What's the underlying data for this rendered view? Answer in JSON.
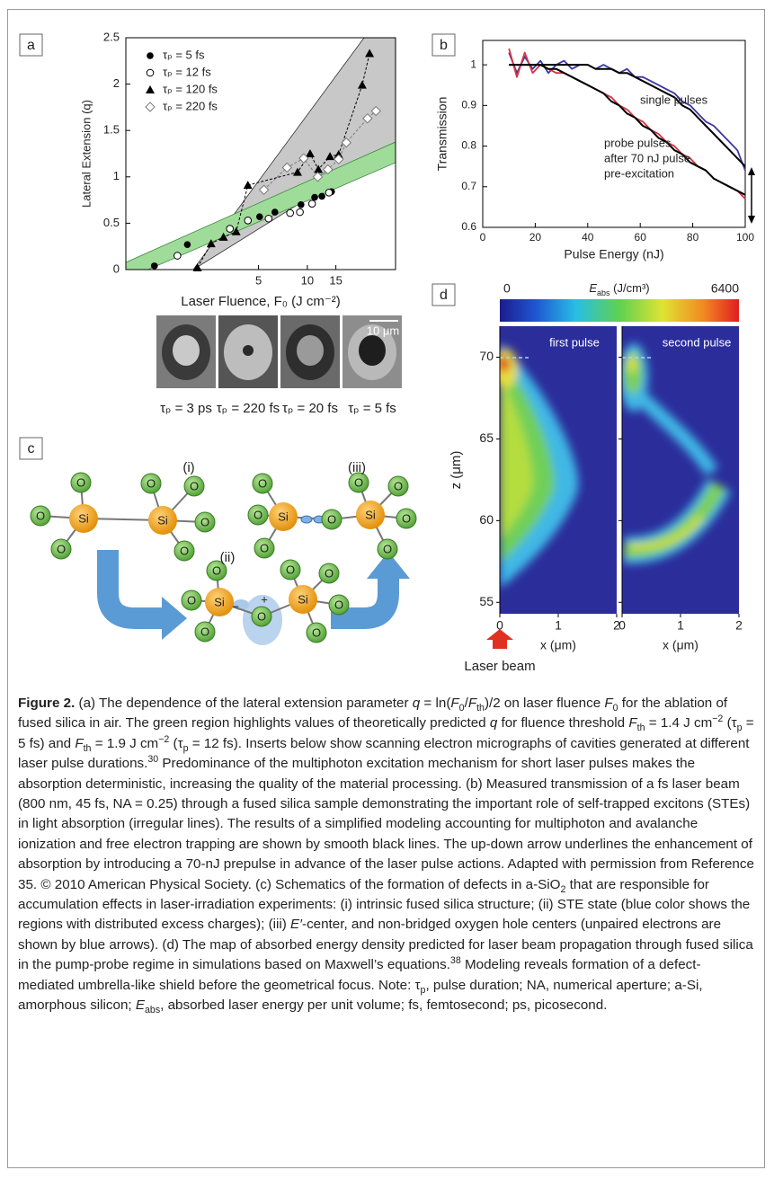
{
  "panel_labels": [
    "a",
    "b",
    "c",
    "d"
  ],
  "chart_data": [
    {
      "type": "scatter",
      "xlabel": "Laser Fluence, F₀ (J cm⁻²)",
      "ylabel": "Lateral Extension (q)",
      "xscale": "log",
      "xlim": [
        0.76,
        35
      ],
      "xticks": [
        5,
        10,
        15
      ],
      "ylim": [
        0,
        2.5
      ],
      "yticks": [
        0,
        0.5,
        1,
        1.5,
        2,
        2.5
      ],
      "legend": "upper left",
      "series": [
        {
          "name": "τₚ = 5 fs",
          "color": "#000000",
          "marker": "circle-filled",
          "x": [
            1.14,
            1.82,
            5.08,
            6.31,
            9.14,
            11.1,
            12.3,
            14.1
          ],
          "values": [
            0.04,
            0.27,
            0.57,
            0.62,
            0.7,
            0.78,
            0.79,
            0.84
          ]
        },
        {
          "name": "τₚ = 12 fs",
          "color": "#000000",
          "marker": "circle-open",
          "x": [
            1.58,
            3.33,
            4.3,
            5.77,
            7.83,
            9.0,
            10.7,
            13.6
          ],
          "values": [
            0.15,
            0.44,
            0.53,
            0.55,
            0.61,
            0.62,
            0.71,
            0.83
          ]
        },
        {
          "name": "τₚ = 120 fs",
          "color": "#000000",
          "marker": "triangle",
          "line": "dashed",
          "x": [
            2.1,
            2.55,
            3.04,
            3.64,
            4.3,
            8.7,
            10.4,
            11.7,
            13.8,
            15.6,
            21.8,
            24.2
          ],
          "values": [
            0.02,
            0.28,
            0.35,
            0.41,
            0.91,
            1.05,
            1.25,
            1.08,
            1.22,
            1.24,
            1.99,
            2.33
          ]
        },
        {
          "name": "τₚ = 220 fs",
          "color": "#7a7a7a",
          "marker": "diamond-open",
          "line": "dashed",
          "x": [
            5.4,
            7.5,
            9.5,
            11.6,
            13.4,
            15.6,
            17.4,
            23.5,
            26.5
          ],
          "values": [
            0.86,
            1.1,
            1.2,
            1.0,
            1.08,
            1.19,
            1.37,
            1.63,
            1.71
          ]
        }
      ]
    },
    {
      "type": "line",
      "xlabel": "Pulse Energy (nJ)",
      "ylabel": "Transmission",
      "xlim": [
        0,
        100
      ],
      "xticks": [
        0,
        20,
        40,
        60,
        80,
        100
      ],
      "ylim": [
        0.6,
        1.06
      ],
      "yticks": [
        0.6,
        0.7,
        0.8,
        0.9,
        1
      ],
      "x": [
        10,
        13,
        16,
        19,
        22,
        25,
        28,
        31,
        34,
        37,
        40,
        43,
        46,
        49,
        52,
        55,
        58,
        61,
        64,
        67,
        70,
        73,
        76,
        79,
        82,
        85,
        88,
        91,
        94,
        97,
        100
      ],
      "series": [
        {
          "color": "#3b36a6",
          "values": [
            1.03,
            0.98,
            1.02,
            0.99,
            1.01,
            0.98,
            1.0,
            1.01,
            0.99,
            1.0,
            1.0,
            0.99,
            1.0,
            0.99,
            0.98,
            0.99,
            0.97,
            0.97,
            0.96,
            0.95,
            0.94,
            0.93,
            0.91,
            0.9,
            0.88,
            0.86,
            0.85,
            0.83,
            0.81,
            0.79,
            0.74
          ]
        },
        {
          "color": "#d9323f",
          "values": [
            1.04,
            0.97,
            1.03,
            0.98,
            1.0,
            0.99,
            0.98,
            0.98,
            0.97,
            0.96,
            0.95,
            0.94,
            0.93,
            0.92,
            0.9,
            0.89,
            0.87,
            0.86,
            0.84,
            0.83,
            0.81,
            0.8,
            0.78,
            0.77,
            0.75,
            0.74,
            0.72,
            0.71,
            0.7,
            0.69,
            0.67
          ]
        },
        {
          "color": "#000000",
          "values": [
            1,
            1,
            1,
            1,
            1,
            1,
            1,
            1,
            1,
            1,
            1,
            0.99,
            0.99,
            0.99,
            0.98,
            0.98,
            0.97,
            0.96,
            0.95,
            0.94,
            0.93,
            0.92,
            0.9,
            0.89,
            0.87,
            0.85,
            0.83,
            0.81,
            0.79,
            0.77,
            0.75
          ]
        },
        {
          "color": "#000000",
          "values": [
            1,
            1,
            1,
            1,
            1,
            0.99,
            0.99,
            0.98,
            0.97,
            0.96,
            0.95,
            0.94,
            0.93,
            0.91,
            0.9,
            0.88,
            0.87,
            0.85,
            0.84,
            0.82,
            0.81,
            0.79,
            0.78,
            0.76,
            0.75,
            0.74,
            0.72,
            0.71,
            0.7,
            0.69,
            0.68
          ]
        }
      ],
      "annotations": [
        "single pulses",
        "probe pulses",
        "after 70 nJ pulse",
        "pre-excitation"
      ]
    },
    {
      "type": "heatmap",
      "colorbar": {
        "label": [
          "E",
          "abs",
          " (J/cm³)"
        ],
        "lim": [
          0,
          6400
        ],
        "ticks": [
          0,
          6400
        ]
      },
      "panels": [
        "first pulse",
        "second pulse"
      ],
      "xlabel": "x (μm)",
      "ylabel": "z (μm)",
      "xlim": [
        0,
        2
      ],
      "xticks": [
        0,
        1,
        2
      ],
      "ylim": [
        54.3,
        71.9
      ],
      "yticks": [
        55,
        60,
        65,
        70
      ],
      "annotation": "Laser beam"
    }
  ],
  "micrographs": {
    "labels": [
      "τₚ = 3 ps",
      "τₚ = 220 fs",
      "τₚ = 20 fs",
      "τₚ = 5 fs"
    ],
    "scale_bar": "10 μm"
  },
  "diagram": {
    "labels": [
      "(i)",
      "(ii)",
      "(iii)"
    ],
    "si": "Si",
    "o": "O",
    "plus": "+",
    "minus": "−"
  },
  "caption": {
    "runs": [
      {
        "b": "Figure 2."
      },
      " (a) The dependence of the lateral extension parameter ",
      {
        "i": "q"
      },
      " = ln(",
      {
        "i": "F"
      },
      {
        "sub": "0"
      },
      "/",
      {
        "i": "F"
      },
      {
        "sub": "th"
      },
      ")/2 on laser fluence ",
      {
        "i": "F"
      },
      {
        "sub": "0"
      },
      " for the ablation of fused silica in air. The green region highlights values of theoretically predicted ",
      {
        "i": "q"
      },
      " for fluence threshold ",
      {
        "i": "F"
      },
      {
        "sub": "th"
      },
      " = 1.4 J cm",
      {
        "sup": "−2"
      },
      " (τ",
      {
        "sub": "p"
      },
      " = 5 fs) and ",
      {
        "i": "F"
      },
      {
        "sub": "th"
      },
      " = 1.9 J cm",
      {
        "sup": "−2"
      },
      " (τ",
      {
        "sub": "p"
      },
      " = 12 fs). Inserts below show scanning electron micrographs of cavities generated at different laser pulse durations.",
      {
        "sup": "30"
      },
      " Predominance of the multiphoton excitation mechanism for short laser pulses makes the absorption deterministic, increasing the quality of the material processing. (b) Measured transmission of a fs laser beam (800 nm, 45 fs, NA = 0.25) through a fused silica sample demonstrating the important role of self-trapped excitons (STEs) in light absorption (irregular lines). The results of a simplified modeling accounting for multiphoton and avalanche ionization and free electron trapping are shown by smooth black lines. The up-down arrow underlines the enhancement of absorption by introducing a 70-nJ prepulse in advance of the laser pulse actions. Adapted with permission from Reference 35. © 2010 American Physical Society. (c) Schematics of the formation of defects in a-SiO",
      {
        "sub": "2"
      },
      " that are responsible for accumulation effects in laser-irradiation experiments: (i) intrinsic fused silica structure; (ii) STE state (blue color shows the regions with distributed excess charges); (iii) ",
      {
        "i": "E′"
      },
      "-center, and non-bridged oxygen hole centers (unpaired electrons are shown by blue arrows). (d) The map of absorbed energy density predicted for laser beam propagation through fused silica in the pump-probe regime in simulations based on Maxwell’s equations.",
      {
        "sup": "38"
      },
      " Modeling reveals formation of a defect-mediated umbrella-like shield before the geometrical focus. Note: τ",
      {
        "sub": "p"
      },
      ", pulse duration; NA, numerical aperture; a-Si, amorphous silicon; ",
      {
        "i": "E"
      },
      {
        "sub": "abs"
      },
      ", absorbed laser energy per unit volume; fs, femtosecond; ps, picosecond."
    ]
  }
}
